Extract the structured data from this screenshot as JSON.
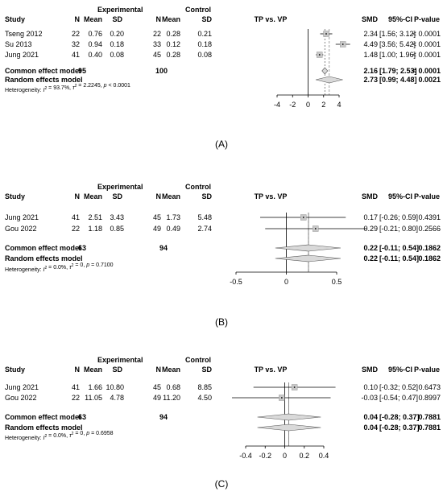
{
  "chart_data": [
    {
      "type": "forest",
      "panel_label": "(A)",
      "group1_header": "Experimental",
      "group2_header": "Control",
      "columns": {
        "study": "Study",
        "n": "N",
        "mean": "Mean",
        "sd": "SD",
        "plot_title": "TP vs. VP",
        "smd": "SMD",
        "ci": "95%-CI",
        "p": "P-value"
      },
      "studies": [
        {
          "name": "Tseng 2012",
          "n1": "22",
          "mean1": "0.76",
          "sd1": "0.20",
          "n2": "22",
          "mean2": "0.28",
          "sd2": "0.21",
          "smd": 2.34,
          "lo": 1.56,
          "hi": 3.12,
          "smd_text": "2.34",
          "ci_text": "[1.56; 3.12]",
          "p_text": "< 0.0001"
        },
        {
          "name": "Su 2013",
          "n1": "32",
          "mean1": "0.94",
          "sd1": "0.18",
          "n2": "33",
          "mean2": "0.12",
          "sd2": "0.18",
          "smd": 4.49,
          "lo": 3.56,
          "hi": 5.42,
          "smd_text": "4.49",
          "ci_text": "[3.56; 5.42]",
          "p_text": "< 0.0001"
        },
        {
          "name": "Jung 2021",
          "n1": "41",
          "mean1": "0.40",
          "sd1": "0.08",
          "n2": "45",
          "mean2": "0.28",
          "sd2": "0.08",
          "smd": 1.48,
          "lo": 1.0,
          "hi": 1.96,
          "smd_text": "1.48",
          "ci_text": "[1.00; 1.96]",
          "p_text": "< 0.0001"
        }
      ],
      "common": {
        "label": "Common effect model",
        "n1": "95",
        "n2": "100",
        "smd": 2.16,
        "lo": 1.79,
        "hi": 2.53,
        "smd_text": "2.16",
        "ci_text": "[1.79; 2.53]",
        "p_text": "< 0.0001"
      },
      "random": {
        "label": "Random effects model",
        "smd": 2.73,
        "lo": 0.99,
        "hi": 4.48,
        "smd_text": "2.73",
        "ci_text": "[0.99; 4.48]",
        "p_text": "0.0021"
      },
      "heterogeneity": {
        "prefix": "Heterogeneity: ",
        "i2_label": "I",
        "i2_value": " = 93.7%, ",
        "tau_label": "τ",
        "tau_value": " = 2.2245, ",
        "p_label": "p",
        "p_value": " < 0.0001"
      },
      "xlim": [
        -4,
        4
      ],
      "ticks": [
        -4,
        -2,
        0,
        2,
        4
      ],
      "tick_labels": [
        "-4",
        "-2",
        "0",
        "2",
        "4"
      ]
    },
    {
      "type": "forest",
      "panel_label": "(B)",
      "group1_header": "Experimental",
      "group2_header": "Control",
      "columns": {
        "study": "Study",
        "n": "N",
        "mean": "Mean",
        "sd": "SD",
        "plot_title": "TP vs. VP",
        "smd": "SMD",
        "ci": "95%-CI",
        "p": "P-value"
      },
      "studies": [
        {
          "name": "Jung 2021",
          "n1": "41",
          "mean1": "2.51",
          "sd1": "3.43",
          "n2": "45",
          "mean2": "1.73",
          "sd2": "5.48",
          "smd": 0.17,
          "lo": -0.26,
          "hi": 0.59,
          "smd_text": "0.17",
          "ci_text": "[-0.26; 0.59]",
          "p_text": "0.4391"
        },
        {
          "name": "Gou 2022",
          "n1": "22",
          "mean1": "1.18",
          "sd1": "0.85",
          "n2": "49",
          "mean2": "0.49",
          "sd2": "2.74",
          "smd": 0.29,
          "lo": -0.21,
          "hi": 0.8,
          "smd_text": "0.29",
          "ci_text": "[-0.21; 0.80]",
          "p_text": "0.2566"
        }
      ],
      "common": {
        "label": "Common effect model",
        "n1": "63",
        "n2": "94",
        "smd": 0.22,
        "lo": -0.11,
        "hi": 0.54,
        "smd_text": "0.22",
        "ci_text": "[-0.11; 0.54]",
        "p_text": "0.1862"
      },
      "random": {
        "label": "Random effects model",
        "smd": 0.22,
        "lo": -0.11,
        "hi": 0.54,
        "smd_text": "0.22",
        "ci_text": "[-0.11; 0.54]",
        "p_text": "0.1862"
      },
      "heterogeneity": {
        "prefix": "Heterogeneity: ",
        "i2_label": "I",
        "i2_value": " = 0.0%, ",
        "tau_label": "τ",
        "tau_value": " = 0, ",
        "p_label": "p",
        "p_value": " = 0.7100"
      },
      "xlim": [
        -0.5,
        0.5
      ],
      "ticks": [
        -0.5,
        0,
        0.5
      ],
      "tick_labels": [
        "-0.5",
        "0",
        "0.5"
      ]
    },
    {
      "type": "forest",
      "panel_label": "(C)",
      "group1_header": "Experimental",
      "group2_header": "Control",
      "columns": {
        "study": "Study",
        "n": "N",
        "mean": "Mean",
        "sd": "SD",
        "plot_title": "TP vs. VP",
        "smd": "SMD",
        "ci": "95%-CI",
        "p": "P-value"
      },
      "studies": [
        {
          "name": "Jung 2021",
          "n1": "41",
          "mean1": "1.66",
          "sd1": "10.80",
          "n2": "45",
          "mean2": "0.68",
          "sd2": "8.85",
          "smd": 0.1,
          "lo": -0.32,
          "hi": 0.52,
          "smd_text": "0.10",
          "ci_text": "[-0.32; 0.52]",
          "p_text": "0.6473"
        },
        {
          "name": "Gou 2022",
          "n1": "22",
          "mean1": "11.05",
          "sd1": "4.78",
          "n2": "49",
          "mean2": "11.20",
          "sd2": "4.50",
          "smd": -0.03,
          "lo": -0.54,
          "hi": 0.47,
          "smd_text": "-0.03",
          "ci_text": "[-0.54; 0.47]",
          "p_text": "0.8997"
        }
      ],
      "common": {
        "label": "Common effect model",
        "n1": "63",
        "n2": "94",
        "smd": 0.04,
        "lo": -0.28,
        "hi": 0.37,
        "smd_text": "0.04",
        "ci_text": "[-0.28; 0.37]",
        "p_text": "0.7881"
      },
      "random": {
        "label": "Random effects model",
        "smd": 0.04,
        "lo": -0.28,
        "hi": 0.37,
        "smd_text": "0.04",
        "ci_text": "[-0.28; 0.37]",
        "p_text": "0.7881"
      },
      "heterogeneity": {
        "prefix": "Heterogeneity: ",
        "i2_label": "I",
        "i2_value": " = 0.0%, ",
        "tau_label": "τ",
        "tau_value": " = 0, ",
        "p_label": "p",
        "p_value": " = 0.6958"
      },
      "xlim": [
        -0.4,
        0.4
      ],
      "ticks": [
        -0.4,
        -0.2,
        0,
        0.2,
        0.4
      ],
      "tick_labels": [
        "-0.4",
        "-0.2",
        "0",
        "0.2",
        "0.4"
      ]
    }
  ]
}
